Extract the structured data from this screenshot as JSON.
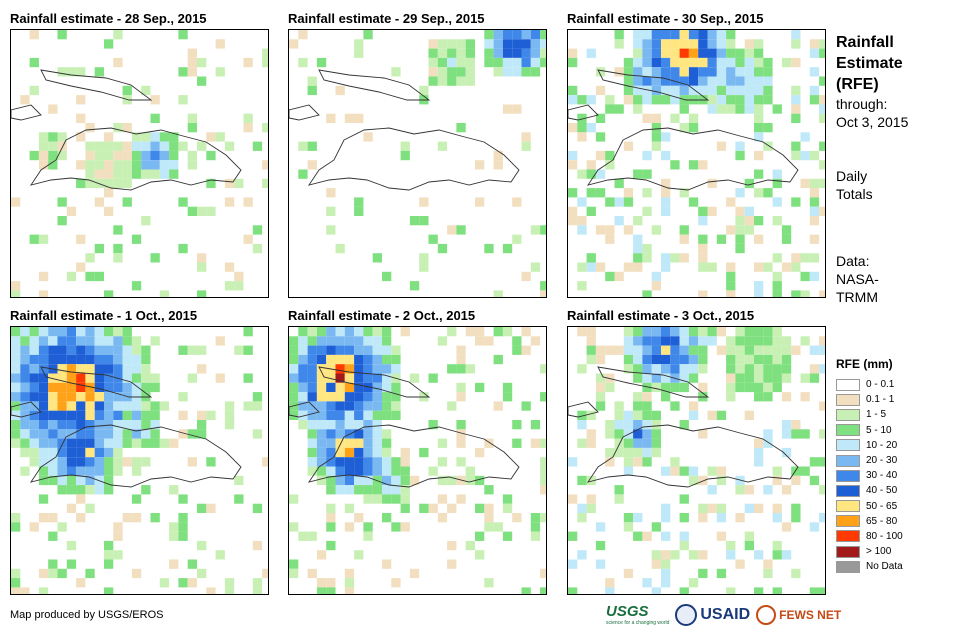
{
  "panels": [
    {
      "title": "Rainfall estimate - 28 Sep., 2015"
    },
    {
      "title": "Rainfall estimate - 29 Sep., 2015"
    },
    {
      "title": "Rainfall estimate - 30 Sep., 2015"
    },
    {
      "title": "Rainfall estimate - 1 Oct., 2015"
    },
    {
      "title": "Rainfall estimate - 2 Oct., 2015"
    },
    {
      "title": "Rainfall estimate - 3 Oct., 2015"
    }
  ],
  "side": {
    "title_lines": [
      "Rainfall",
      "Estimate",
      "(RFE)"
    ],
    "through": "through:",
    "date": "Oct 3, 2015",
    "totals_lines": [
      "Daily",
      "Totals"
    ],
    "data_lines": [
      "Data:",
      "NASA-",
      "TRMM"
    ]
  },
  "legend": {
    "title": "RFE (mm)",
    "items": [
      {
        "label": "0 - 0.1",
        "color": "#ffffff"
      },
      {
        "label": "0.1 - 1",
        "color": "#f2dfc0"
      },
      {
        "label": "1 - 5",
        "color": "#c8f0b4"
      },
      {
        "label": "5 - 10",
        "color": "#7ee07e"
      },
      {
        "label": "10 - 20",
        "color": "#bfe8f8"
      },
      {
        "label": "20 - 30",
        "color": "#7ab8f2"
      },
      {
        "label": "30 - 40",
        "color": "#3f87e8"
      },
      {
        "label": "40 - 50",
        "color": "#1f5fd6"
      },
      {
        "label": "50 - 65",
        "color": "#ffe680"
      },
      {
        "label": "65 - 80",
        "color": "#ffa21a"
      },
      {
        "label": "80 - 100",
        "color": "#ff3a00"
      },
      {
        "label": "> 100",
        "color": "#a31a1a"
      },
      {
        "label": "No Data",
        "color": "#999999"
      }
    ]
  },
  "credit": "Map produced by USGS/EROS",
  "logos": {
    "usgs": "USGS",
    "usgs_tagline": "science for a changing world",
    "usaid": "USAID",
    "fews": "FEWS NET"
  }
}
